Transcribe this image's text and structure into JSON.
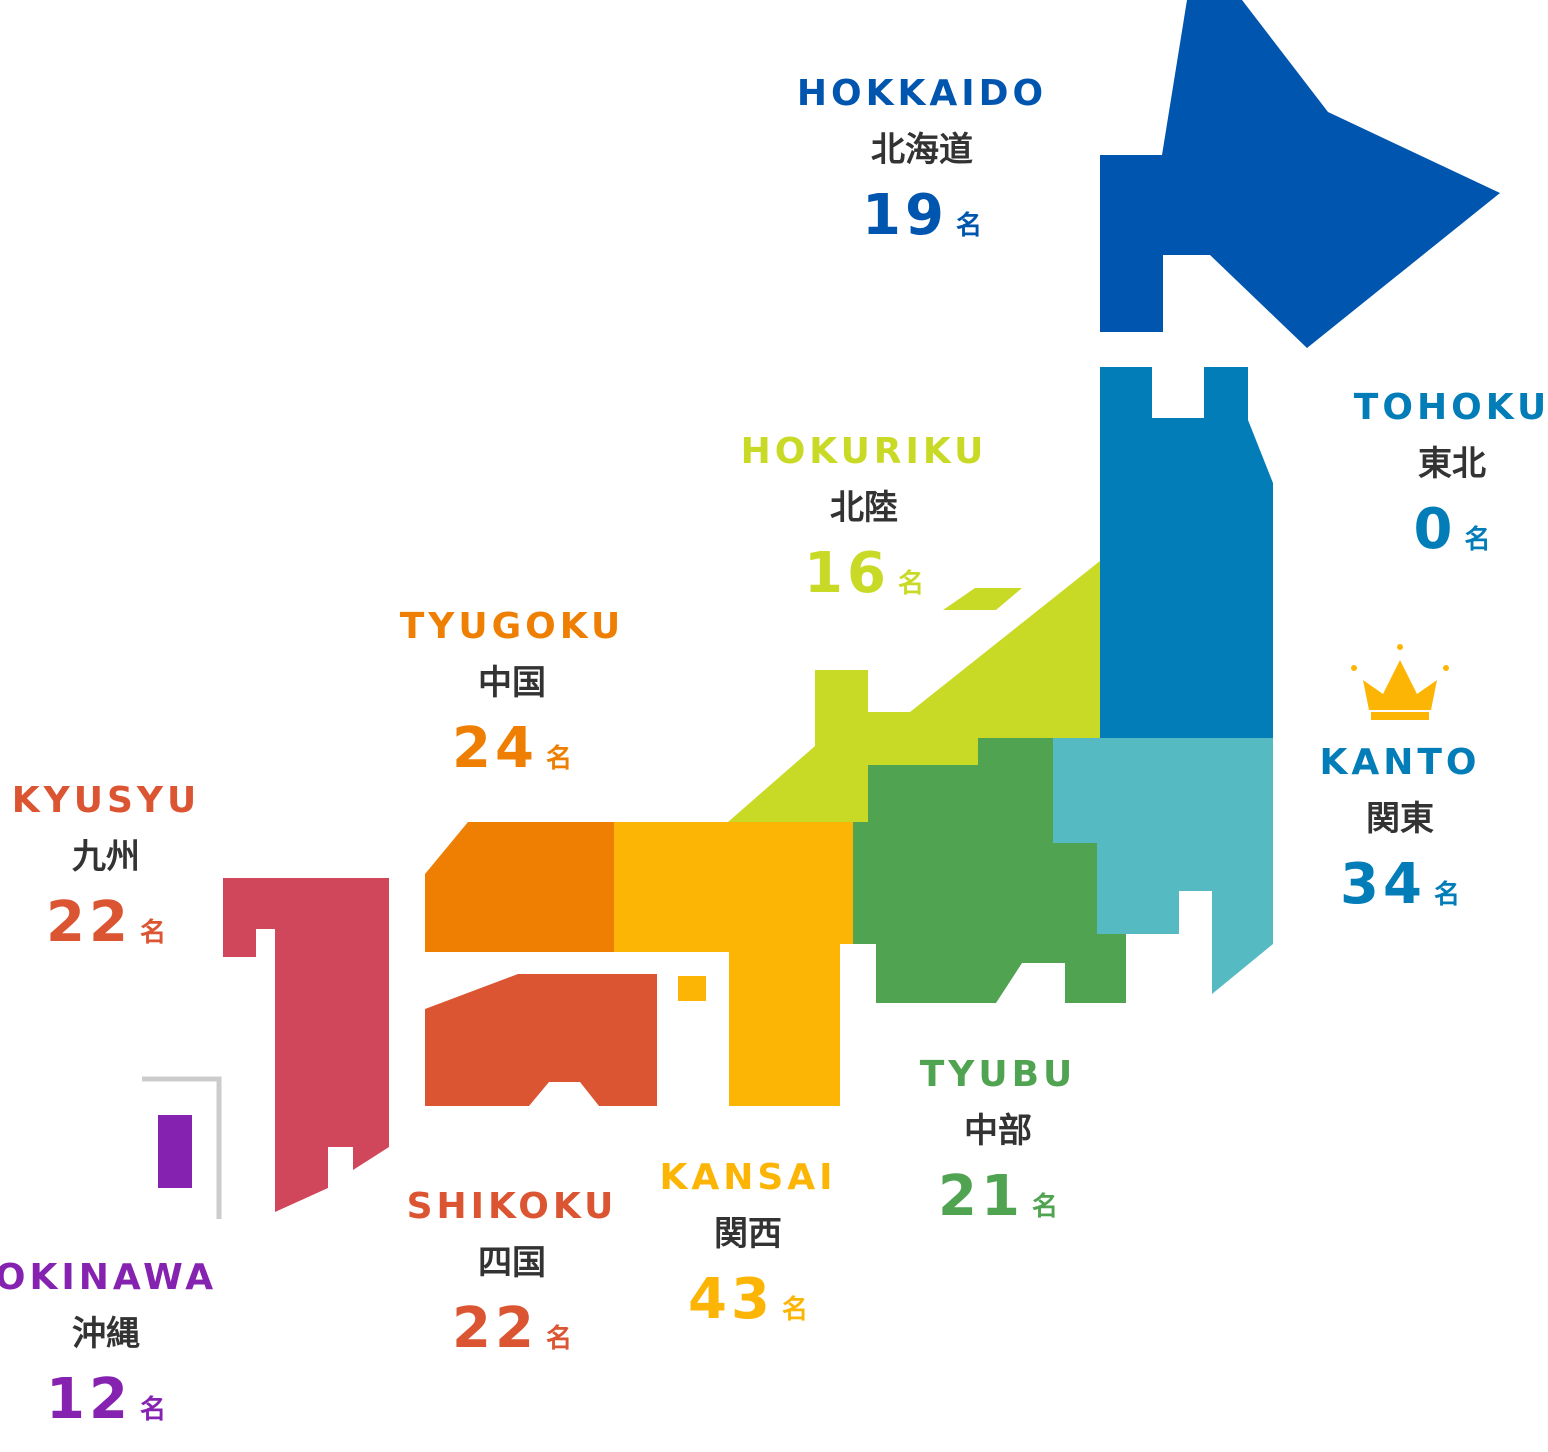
{
  "unit_label": "名",
  "regions": [
    {
      "key": "hokkaido",
      "name_en": "HOKKAIDO",
      "name_ja": "北海道",
      "count": "19",
      "color": "#0055AE"
    },
    {
      "key": "tohoku",
      "name_en": "TOHOKU",
      "name_ja": "東北",
      "count": "0",
      "color": "#037DB8"
    },
    {
      "key": "hokuriku",
      "name_en": "HOKURIKU",
      "name_ja": "北陸",
      "count": "16",
      "color": "#C9DA26"
    },
    {
      "key": "kanto",
      "name_en": "KANTO",
      "name_ja": "関東",
      "count": "34",
      "color": "#037DB8",
      "shape_color": "#56BAC2",
      "top_ranked": true
    },
    {
      "key": "tyubu",
      "name_en": "TYUBU",
      "name_ja": "中部",
      "count": "21",
      "color": "#50A351"
    },
    {
      "key": "kansai",
      "name_en": "KANSAI",
      "name_ja": "関西",
      "count": "43",
      "color": "#FDB505"
    },
    {
      "key": "tyugoku",
      "name_en": "TYUGOKU",
      "name_ja": "中国",
      "count": "24",
      "color": "#EE7F03"
    },
    {
      "key": "shikoku",
      "name_en": "SHIKOKU",
      "name_ja": "四国",
      "count": "22",
      "color": "#DB5532"
    },
    {
      "key": "kyusyu",
      "name_en": "KYUSYU",
      "name_ja": "九州",
      "count": "22",
      "color": "#DB5532",
      "shape_color": "#D0465B"
    },
    {
      "key": "okinawa",
      "name_en": "OKINAWA",
      "name_ja": "沖縄",
      "count": "12",
      "color": "#8622B0"
    }
  ],
  "crown_icon": "crown-icon",
  "crown_color": "#FDB505",
  "inset_frame_color": "#CCCCCC"
}
